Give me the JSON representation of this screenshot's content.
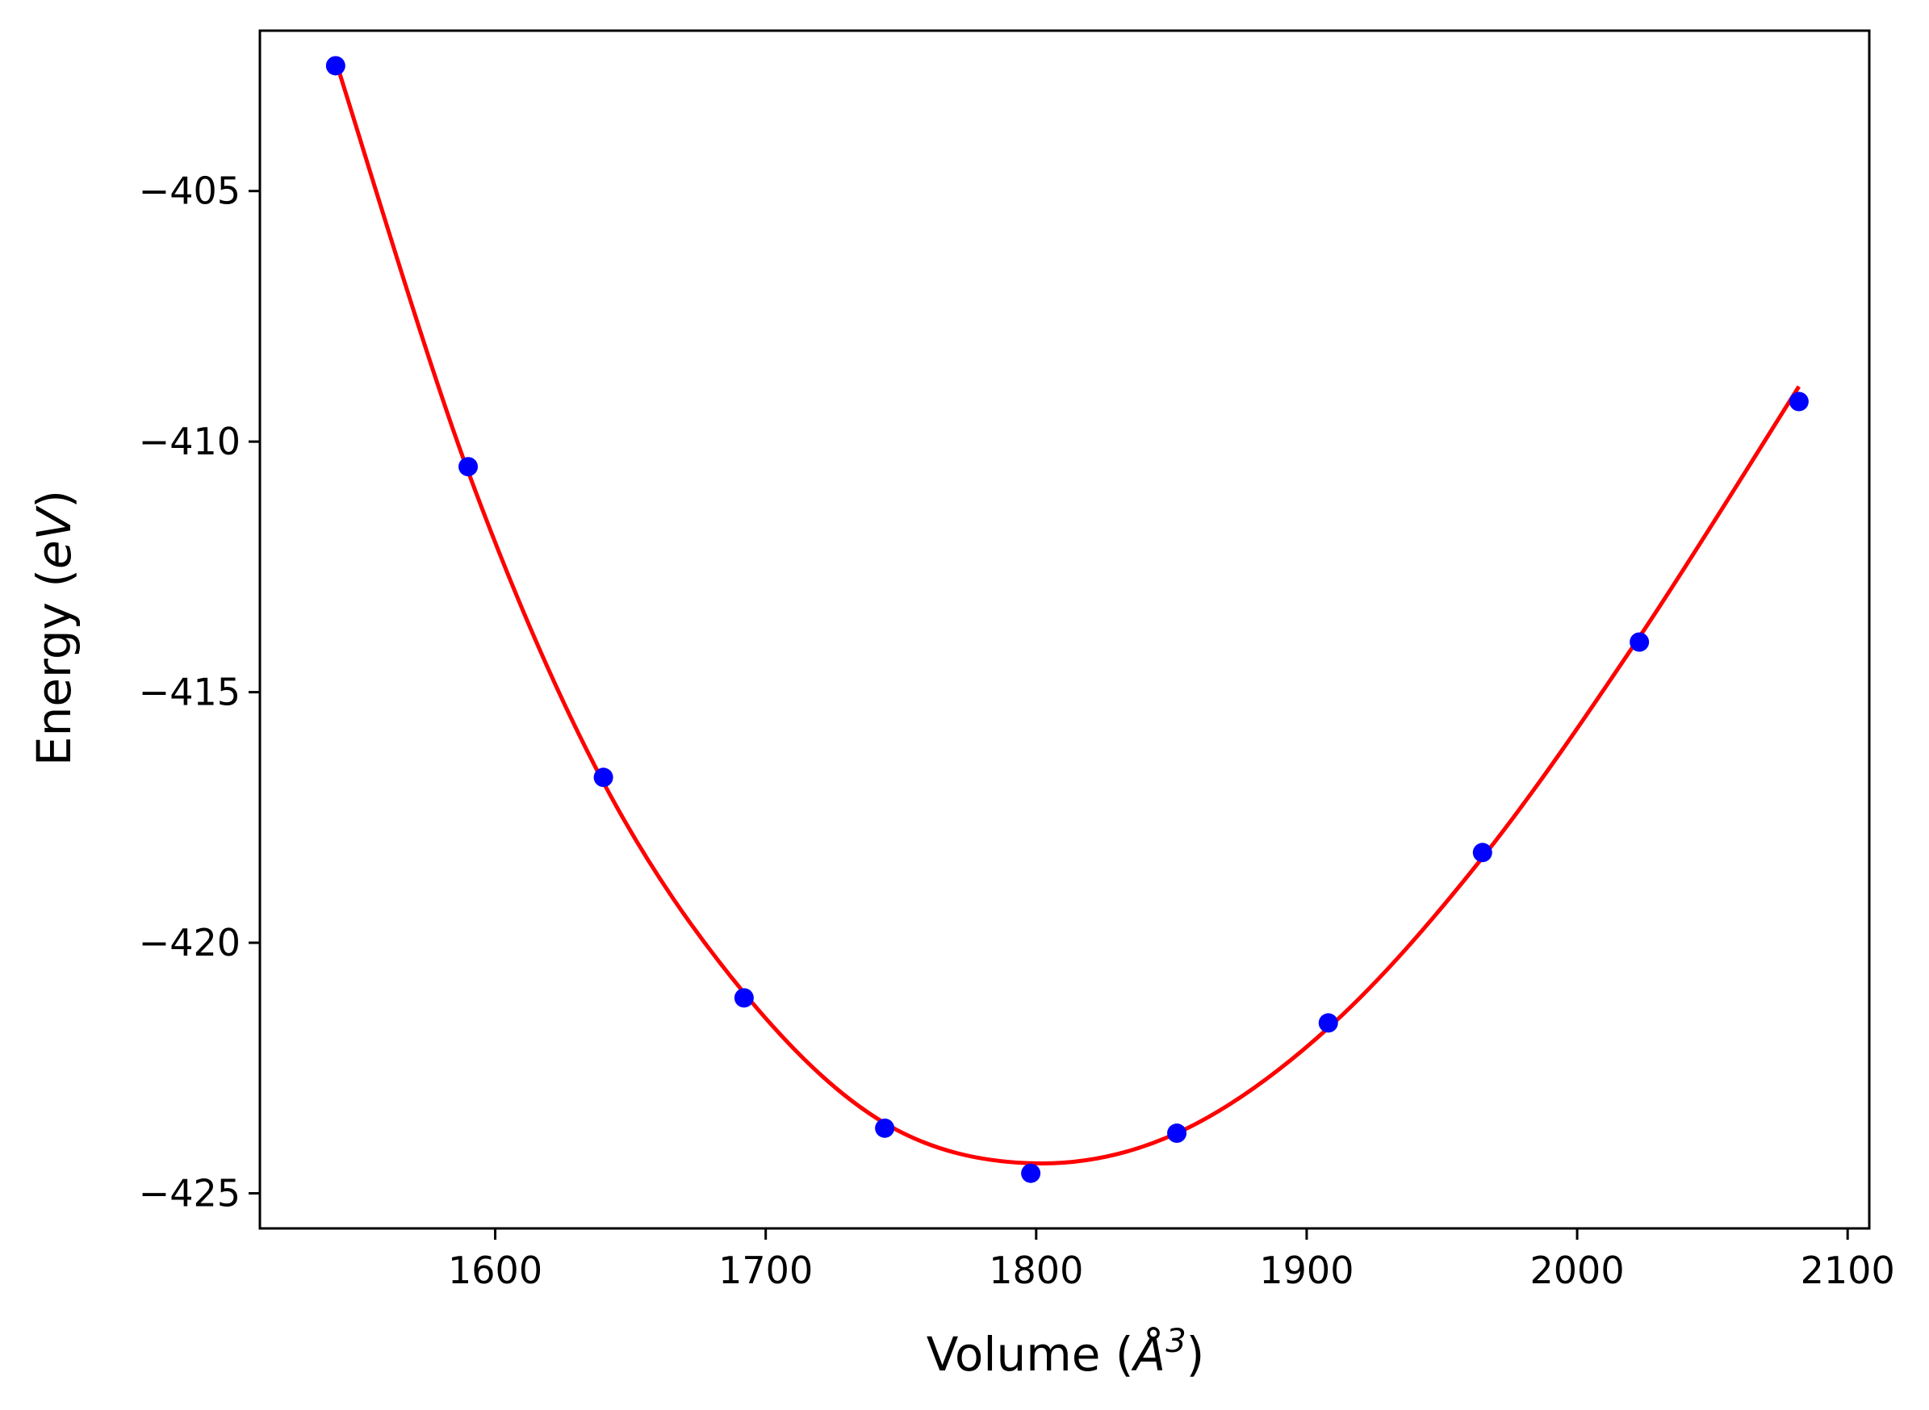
{
  "chart_data": {
    "type": "scatter",
    "title": "",
    "xlabel_prefix": "Volume (",
    "xlabel_unit": "Å",
    "xlabel_exp": "3",
    "xlabel_suffix": ")",
    "ylabel_prefix": "Energy (",
    "ylabel_unit": "eV",
    "ylabel_suffix": ")",
    "xlim": [
      1513,
      2108
    ],
    "ylim": [
      -425.7,
      -401.8
    ],
    "xticks": [
      1600,
      1700,
      1800,
      1900,
      2000,
      2100
    ],
    "xtick_labels": [
      "1600",
      "1700",
      "1800",
      "1900",
      "2000",
      "2100"
    ],
    "yticks": [
      -405,
      -410,
      -415,
      -420,
      -425
    ],
    "ytick_labels": [
      "−405",
      "−410",
      "−415",
      "−420",
      "−425"
    ],
    "grid": false,
    "series": [
      {
        "kind": "points",
        "color": "#0000ff",
        "x": [
          1541,
          1590,
          1640,
          1692,
          1744,
          1798,
          1852,
          1908,
          1965,
          2023,
          2082
        ],
        "y": [
          -402.5,
          -410.5,
          -416.7,
          -421.1,
          -423.7,
          -424.6,
          -423.8,
          -421.6,
          -418.2,
          -414.0,
          -409.2
        ]
      },
      {
        "kind": "fit-curve",
        "color": "#ff0000",
        "x": [
          1541,
          1590,
          1640,
          1692,
          1744,
          1798,
          1852,
          1908,
          1965,
          2023,
          2082
        ],
        "y": [
          -402.4,
          -410.6,
          -416.8,
          -421.0,
          -423.6,
          -424.4,
          -423.8,
          -421.7,
          -418.3,
          -413.9,
          -408.9
        ]
      }
    ]
  }
}
